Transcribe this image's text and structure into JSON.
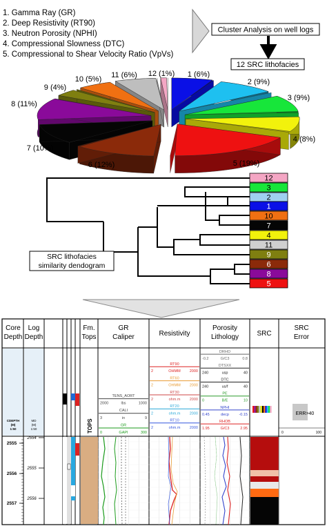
{
  "inputs": [
    "1. Gamma Ray (GR)",
    "2. Deep Resistivity (RT90)",
    "3. Neutron Porosity (NPHI)",
    "4. Compressional Slowness (DTC)",
    "5. Compressional to Shear Velocity Ratio (VpVs)"
  ],
  "flow": {
    "cluster_box": "Cluster Analysis on well logs",
    "result_box": "12 SRC lithofacies"
  },
  "chart_data": {
    "type": "pie",
    "slices": [
      {
        "label": "1 (6%)",
        "id": "1",
        "value": 6,
        "color": "#0a10e6"
      },
      {
        "label": "2 (9%)",
        "id": "2",
        "value": 9,
        "color": "#1ec0f0"
      },
      {
        "label": "3 (9%)",
        "id": "3",
        "value": 9,
        "color": "#17e63a"
      },
      {
        "label": "4 (8%)",
        "id": "4",
        "value": 8,
        "color": "#f2f20c"
      },
      {
        "label": "5 (19%)",
        "id": "5",
        "value": 19,
        "color": "#ee1111"
      },
      {
        "label": "6 (12%)",
        "id": "6",
        "value": 12,
        "color": "#8b2a0a"
      },
      {
        "label": "7 (10%)",
        "id": "7",
        "value": 10,
        "color": "#050505"
      },
      {
        "label": "8 (11%)",
        "id": "8",
        "value": 11,
        "color": "#8a0a9a"
      },
      {
        "label": "9 (4%)",
        "id": "9",
        "value": 4,
        "color": "#7f7f10"
      },
      {
        "label": "10 (5%)",
        "id": "10",
        "value": 5,
        "color": "#f07012"
      },
      {
        "label": "11 (6%)",
        "id": "11",
        "value": 6,
        "color": "#bebebe"
      },
      {
        "label": "12 (1%)",
        "id": "12",
        "value": 1,
        "color": "#f4a6c4"
      }
    ]
  },
  "dendrogram": {
    "label_line1": "SRC lithofacies",
    "label_line2": "similarity dendogram",
    "leaves": [
      {
        "id": "12",
        "color": "#f4a6c4",
        "text_color": "#000000"
      },
      {
        "id": "3",
        "color": "#17e63a",
        "text_color": "#000000"
      },
      {
        "id": "2",
        "color": "#9fd0f0",
        "text_color": "#000000"
      },
      {
        "id": "1",
        "color": "#0a10e6",
        "text_color": "#ffffff"
      },
      {
        "id": "10",
        "color": "#f07012",
        "text_color": "#000000"
      },
      {
        "id": "7",
        "color": "#050505",
        "text_color": "#ffffff"
      },
      {
        "id": "4",
        "color": "#f2f20c",
        "text_color": "#000000"
      },
      {
        "id": "11",
        "color": "#d0d0d0",
        "text_color": "#000000"
      },
      {
        "id": "9",
        "color": "#7f7f10",
        "text_color": "#ffffff"
      },
      {
        "id": "6",
        "color": "#8b2a0a",
        "text_color": "#ffffff"
      },
      {
        "id": "8",
        "color": "#8a0a9a",
        "text_color": "#ffffff"
      },
      {
        "id": "5",
        "color": "#ee1111",
        "text_color": "#ffffff"
      }
    ]
  },
  "log": {
    "headers": {
      "core_depth": [
        "Core",
        "Depth"
      ],
      "log_depth": [
        "Log",
        "Depth"
      ],
      "fm_tops": [
        "Fm.",
        "Tops"
      ],
      "gr": [
        "GR",
        "Caliper"
      ],
      "resistivity": [
        "Resistivity"
      ],
      "porosity": [
        "Porosity",
        "Lithology"
      ],
      "src": [
        "SRC"
      ],
      "src_error": [
        "SRC",
        "Error"
      ]
    },
    "core_depth_scale": [
      "CDEPTH",
      "(M)",
      "1:50"
    ],
    "log_depth_scale": [
      "MD",
      "(M)",
      "1:50"
    ],
    "tops_label": "TOPS",
    "err_label": "ERR>40",
    "err_scale": [
      "0",
      "100"
    ],
    "gr_scales": [
      {
        "name": "TENS_AORT",
        "left": "",
        "unit": "",
        "right": "",
        "color": "#444444"
      },
      {
        "name": "",
        "left": "2000",
        "unit": "lbs",
        "right": "1000",
        "color": "#444444"
      },
      {
        "name": "CALI",
        "left": "",
        "unit": "",
        "right": "",
        "color": "#444444"
      },
      {
        "name": "",
        "left": "3",
        "unit": "in",
        "right": "9",
        "color": "#444444"
      },
      {
        "name": "GR",
        "left": "",
        "unit": "",
        "right": "",
        "color": "#1a9a1a"
      },
      {
        "name": "",
        "left": "0",
        "unit": "GAPI",
        "right": "300",
        "color": "#1a9a1a"
      }
    ],
    "res_scales": [
      {
        "name": "RT90",
        "left": "",
        "unit": "",
        "right": "",
        "color": "#dd2222"
      },
      {
        "name": "",
        "left": "2",
        "unit": "OHMM",
        "right": "2000",
        "color": "#dd2222"
      },
      {
        "name": "RT60",
        "left": "",
        "unit": "",
        "right": "",
        "color": "#e89a30"
      },
      {
        "name": "",
        "left": "2",
        "unit": "OHMM",
        "right": "2000",
        "color": "#e89a30"
      },
      {
        "name": "RT30",
        "left": "",
        "unit": "",
        "right": "",
        "color": "#cc4444"
      },
      {
        "name": "",
        "left": "2",
        "unit": "ohm.m",
        "right": "2000",
        "color": "#cc4444"
      },
      {
        "name": "RT20",
        "left": "",
        "unit": "",
        "right": "",
        "color": "#2aa8d8"
      },
      {
        "name": "",
        "left": "2",
        "unit": "ohm.m",
        "right": "2000",
        "color": "#2aa8d8"
      },
      {
        "name": "RT10",
        "left": "",
        "unit": "",
        "right": "",
        "color": "#3355dd"
      },
      {
        "name": "",
        "left": "2",
        "unit": "ohm.m",
        "right": "2000",
        "color": "#3355dd"
      }
    ],
    "por_scales": [
      {
        "name": "DRHO",
        "left": "",
        "unit": "",
        "right": "",
        "color": "#666666"
      },
      {
        "name": "",
        "left": "-0.2",
        "unit": "G/C3",
        "right": "0.8",
        "color": "#666666"
      },
      {
        "name": "DTSXX",
        "left": "",
        "unit": "",
        "right": "",
        "color": "#666666"
      },
      {
        "name": "",
        "left": "240",
        "unit": "usp",
        "right": "40",
        "color": "#222222"
      },
      {
        "name": "DTC",
        "left": "",
        "unit": "",
        "right": "",
        "color": "#222222"
      },
      {
        "name": "",
        "left": "240",
        "unit": "us/f",
        "right": "40",
        "color": "#222222"
      },
      {
        "name": "PE",
        "left": "",
        "unit": "",
        "right": "",
        "color": "#2a9a2a"
      },
      {
        "name": "",
        "left": "0",
        "unit": "B/E",
        "right": "10",
        "color": "#2a9a2a"
      },
      {
        "name": "NPHI",
        "left": "",
        "unit": "",
        "right": "",
        "color": "#3344cc"
      },
      {
        "name": "",
        "left": "0.45",
        "unit": "decp",
        "right": "-0.15",
        "color": "#3344cc"
      },
      {
        "name": "RHOB",
        "left": "",
        "unit": "",
        "right": "",
        "color": "#dd2222"
      },
      {
        "name": "",
        "left": "1.95",
        "unit": "G/C3",
        "right": "2.95",
        "color": "#dd2222"
      }
    ],
    "core_ticks": [
      "2555",
      "2556",
      "2557"
    ],
    "log_ticks": [
      "2554",
      "2555",
      "2556"
    ]
  }
}
